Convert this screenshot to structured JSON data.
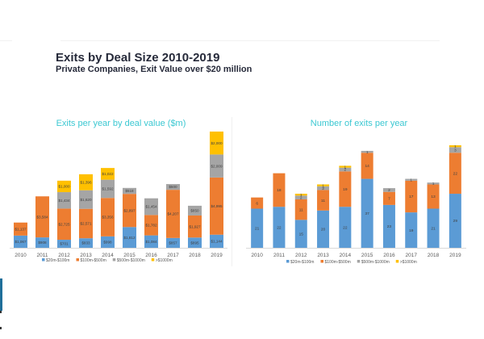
{
  "header": {
    "title": "Exits by Deal Size 2010-2019",
    "subtitle": "Private Companies, Exit Value over $20 million"
  },
  "colors": {
    "s20_100": "#5b9bd5",
    "s100_500": "#ed7d31",
    "s500_1000": "#a5a5a5",
    "s1000plus": "#ffc000",
    "chart_title": "#3cc8d2"
  },
  "chart_data": [
    {
      "type": "bar",
      "stacked": true,
      "title": "Exits per year by deal value ($m)",
      "xlabel": "",
      "ylabel": "",
      "categories": [
        "2010",
        "2011",
        "2012",
        "2013",
        "2014",
        "2015",
        "2016",
        "2017",
        "2018",
        "2019"
      ],
      "series": [
        {
          "name": "$20m-$100m",
          "color": "#5b9bd5",
          "values": [
            1067,
            908,
            701,
            833,
            998,
            1812,
            1084,
            857,
            895,
            1144
          ],
          "labels": [
            "$1,067",
            "$908",
            "$701",
            "$833",
            "$998",
            "$1,812",
            "$1,084",
            "$857",
            "$895",
            "$1,144"
          ]
        },
        {
          "name": "$100m-$500m",
          "color": "#ed7d31",
          "values": [
            1137,
            3584,
            2725,
            2571,
            3356,
            2897,
            1782,
            4207,
            1927,
            4995
          ],
          "labels": [
            "$1,137",
            "$3,584",
            "$2,725",
            "$2,571",
            "$3,356",
            "$2,897",
            "$1,782",
            "$4,207",
            "$1,927",
            "$4,995"
          ]
        },
        {
          "name": "$500m-$1000m",
          "color": "#a5a5a5",
          "values": [
            0,
            0,
            1434,
            1620,
            1592,
            518,
            1454,
            500,
            850,
            2009
          ],
          "labels": [
            "",
            "",
            "$1,434",
            "$1,620",
            "$1,592",
            "$518",
            "$1,454",
            "$500",
            "$850",
            "$2,009"
          ]
        },
        {
          "name": ">$1000m",
          "color": "#ffc000",
          "values": [
            0,
            0,
            1000,
            1396,
            1022,
            0,
            0,
            0,
            0,
            2000
          ],
          "labels": [
            "",
            "",
            "$1,000",
            "$1,396",
            "$1,022",
            "",
            "",
            "",
            "",
            "$2,000"
          ]
        }
      ],
      "ylim": [
        0,
        10200
      ],
      "grid": false,
      "legend": "bottom"
    },
    {
      "type": "bar",
      "stacked": true,
      "title": "Number of exits per year",
      "xlabel": "",
      "ylabel": "",
      "categories": [
        "2010",
        "2011",
        "2012",
        "2013",
        "2014",
        "2015",
        "2016",
        "2017",
        "2018",
        "2019"
      ],
      "series": [
        {
          "name": "$20m-$100m",
          "color": "#5b9bd5",
          "values": [
            21,
            22,
            15,
            20,
            22,
            37,
            23,
            19,
            21,
            29
          ],
          "labels": [
            "21",
            "22",
            "15",
            "20",
            "22",
            "37",
            "23",
            "19",
            "21",
            "29"
          ]
        },
        {
          "name": "$100m-$500m",
          "color": "#ed7d31",
          "values": [
            6,
            18,
            11,
            11,
            19,
            14,
            7,
            17,
            13,
            22
          ],
          "labels": [
            "6",
            "18",
            "11",
            "11",
            "19",
            "14",
            "7",
            "17",
            "13",
            "22"
          ]
        },
        {
          "name": "$500m-$1000m",
          "color": "#a5a5a5",
          "values": [
            0,
            0,
            2,
            2,
            2,
            1,
            2,
            1,
            1,
            3
          ],
          "labels": [
            "",
            "",
            "2",
            "2",
            "2",
            "1",
            "2",
            "1",
            "1",
            "3"
          ]
        },
        {
          "name": ">$1000m",
          "color": "#ffc000",
          "values": [
            0,
            0,
            1,
            1,
            1,
            0,
            0,
            0,
            0,
            1
          ],
          "labels": [
            "",
            "",
            "1",
            "1",
            "1",
            "",
            "",
            "",
            "",
            "1"
          ]
        }
      ],
      "ylim": [
        0,
        56
      ],
      "grid": false,
      "legend": "bottom"
    }
  ]
}
